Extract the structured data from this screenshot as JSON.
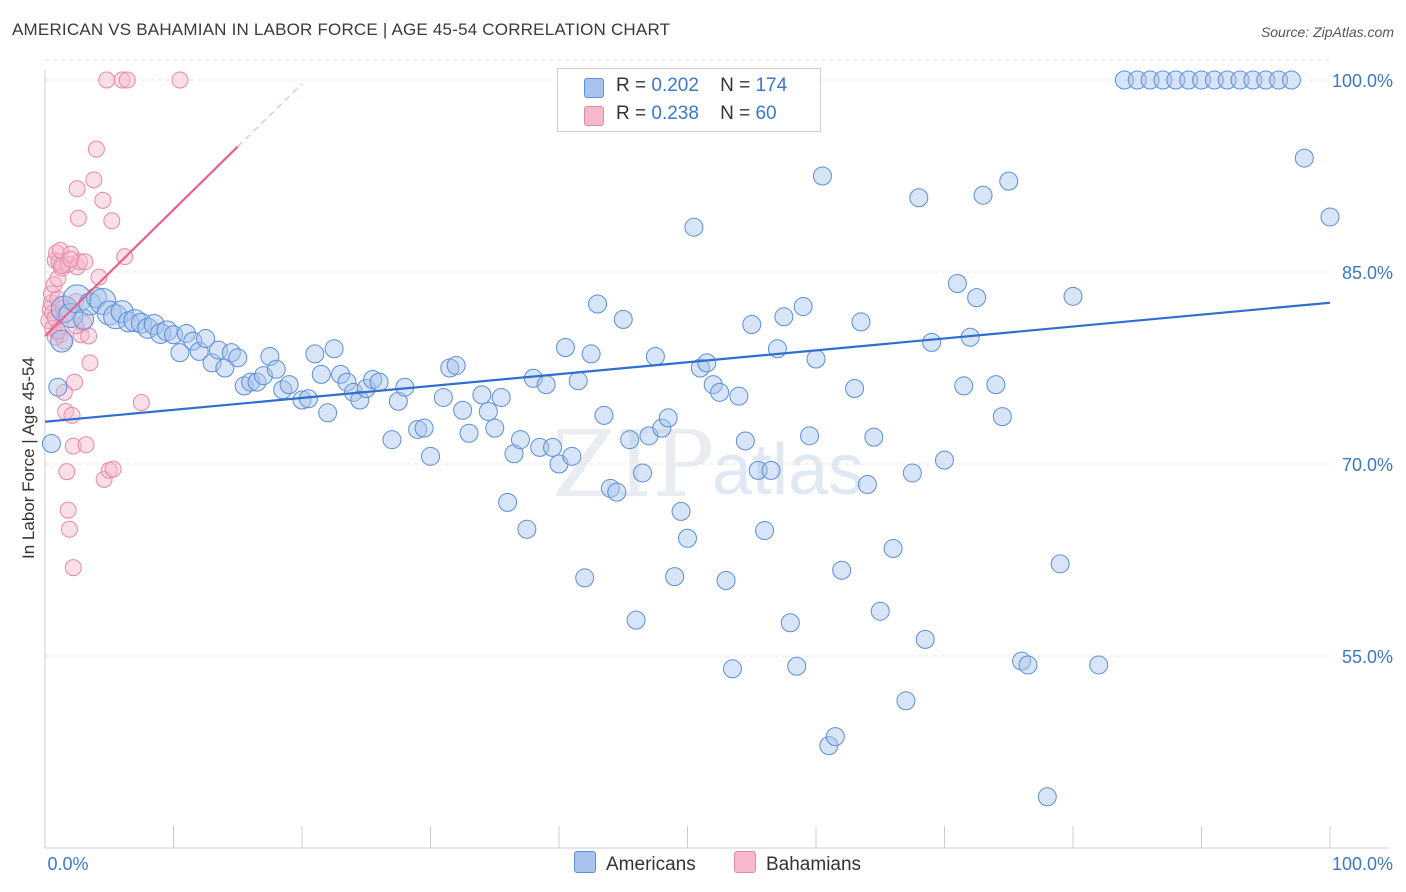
{
  "title": "AMERICAN VS BAHAMIAN IN LABOR FORCE | AGE 45-54 CORRELATION CHART",
  "source": "Source: ZipAtlas.com",
  "watermark": {
    "zip": "ZIP",
    "atlas": "atlas"
  },
  "legend": {
    "rows": [
      {
        "r_label": "R =",
        "r_value": "0.202",
        "n_label": "N =",
        "n_value": "174"
      },
      {
        "r_label": "R =",
        "r_value": "0.238",
        "n_label": "N =",
        "n_value": "60"
      }
    ]
  },
  "bottom_legend": {
    "americans": "Americans",
    "bahamians": "Bahamians"
  },
  "colors": {
    "blue_fill": "#a8c4ee",
    "blue_stroke": "#5b8fd6",
    "blue_line": "#2f6fcf",
    "pink_fill": "#f6b8cb",
    "pink_stroke": "#e58aa6",
    "pink_line": "#e8618c",
    "tick_label": "#3a78c9",
    "grid": "#e2e2e2"
  },
  "chart_data": {
    "type": "scatter",
    "title": "AMERICAN VS BAHAMIAN IN LABOR FORCE | AGE 45-54 CORRELATION CHART",
    "xlabel": "",
    "ylabel": "In Labor Force | Age 45-54",
    "xlim": [
      0,
      100
    ],
    "ylim": [
      40,
      102
    ],
    "x_tick_labels": [
      "0.0%",
      "100.0%"
    ],
    "y_ticks": [
      55,
      70,
      85,
      100
    ],
    "y_tick_labels": [
      "55.0%",
      "70.0%",
      "85.0%",
      "100.0%"
    ],
    "grid": true,
    "legend_position": "top-center",
    "series": [
      {
        "name": "Americans",
        "r": 0.202,
        "n": 174,
        "trend": {
          "x": [
            0,
            100
          ],
          "y": [
            73.3,
            82.6
          ]
        },
        "points": [
          [
            0.5,
            71.6,
            9
          ],
          [
            1.0,
            76.0,
            9
          ],
          [
            1.3,
            79.6,
            11
          ],
          [
            1.5,
            82.1,
            13
          ],
          [
            2.0,
            81.6,
            12
          ],
          [
            2.5,
            82.9,
            14
          ],
          [
            3.0,
            81.3,
            10
          ],
          [
            3.5,
            82.5,
            11
          ],
          [
            4.0,
            83.0,
            10
          ],
          [
            4.5,
            82.7,
            13
          ],
          [
            5.0,
            81.8,
            12
          ],
          [
            5.5,
            81.5,
            12
          ],
          [
            6.0,
            81.9,
            11
          ],
          [
            6.5,
            81.1,
            10
          ],
          [
            7.0,
            81.2,
            11
          ],
          [
            7.5,
            81.0,
            10
          ],
          [
            8.0,
            80.6,
            10
          ],
          [
            8.5,
            80.9,
            10
          ],
          [
            9.0,
            80.2,
            10
          ],
          [
            9.5,
            80.4,
            10
          ],
          [
            10.0,
            80.1,
            9
          ],
          [
            10.5,
            78.7,
            9
          ],
          [
            11.0,
            80.2,
            9
          ],
          [
            11.5,
            79.6,
            9
          ],
          [
            12.0,
            78.8,
            9
          ],
          [
            12.5,
            79.8,
            9
          ],
          [
            13.0,
            77.9,
            9
          ],
          [
            13.5,
            78.9,
            9
          ],
          [
            14.0,
            77.5,
            9
          ],
          [
            14.5,
            78.7,
            9
          ],
          [
            15.0,
            78.3,
            9
          ],
          [
            15.5,
            76.1,
            9
          ],
          [
            16.0,
            76.4,
            9
          ],
          [
            16.5,
            76.4,
            9
          ],
          [
            17.0,
            76.9,
            9
          ],
          [
            17.5,
            78.4,
            9
          ],
          [
            18.0,
            77.4,
            9
          ],
          [
            18.5,
            75.8,
            9
          ],
          [
            19.0,
            76.2,
            9
          ],
          [
            20.0,
            75.0,
            9
          ],
          [
            20.5,
            75.1,
            9
          ],
          [
            21.0,
            78.6,
            9
          ],
          [
            21.5,
            77.0,
            9
          ],
          [
            22.0,
            74.0,
            9
          ],
          [
            22.5,
            79.0,
            9
          ],
          [
            23.0,
            77.0,
            9
          ],
          [
            23.5,
            76.4,
            9
          ],
          [
            24.0,
            75.6,
            9
          ],
          [
            24.5,
            75.0,
            9
          ],
          [
            25.0,
            75.9,
            9
          ],
          [
            25.5,
            76.6,
            9
          ],
          [
            26.0,
            76.4,
            9
          ],
          [
            27.0,
            71.9,
            9
          ],
          [
            27.5,
            74.9,
            9
          ],
          [
            28.0,
            76.0,
            9
          ],
          [
            29.0,
            72.7,
            9
          ],
          [
            29.5,
            72.8,
            9
          ],
          [
            30.0,
            70.6,
            9
          ],
          [
            31.0,
            75.2,
            9
          ],
          [
            31.5,
            77.5,
            9
          ],
          [
            32.0,
            77.7,
            9
          ],
          [
            32.5,
            74.2,
            9
          ],
          [
            33.0,
            72.4,
            9
          ],
          [
            34.0,
            75.4,
            9
          ],
          [
            34.5,
            74.1,
            9
          ],
          [
            35.0,
            72.8,
            9
          ],
          [
            35.5,
            75.2,
            9
          ],
          [
            36.0,
            67.0,
            9
          ],
          [
            36.5,
            70.8,
            9
          ],
          [
            37.0,
            71.9,
            9
          ],
          [
            37.5,
            64.9,
            9
          ],
          [
            38.0,
            76.7,
            9
          ],
          [
            38.5,
            71.3,
            9
          ],
          [
            39.0,
            76.2,
            9
          ],
          [
            39.5,
            71.3,
            9
          ],
          [
            40.0,
            70.0,
            9
          ],
          [
            40.5,
            79.1,
            9
          ],
          [
            41.0,
            70.6,
            9
          ],
          [
            41.5,
            76.5,
            9
          ],
          [
            42.0,
            61.1,
            9
          ],
          [
            42.5,
            78.6,
            9
          ],
          [
            43.0,
            82.5,
            9
          ],
          [
            43.5,
            73.8,
            9
          ],
          [
            44.0,
            68.1,
            9
          ],
          [
            44.5,
            67.8,
            9
          ],
          [
            45.0,
            81.3,
            9
          ],
          [
            45.5,
            71.9,
            9
          ],
          [
            46.0,
            57.8,
            9
          ],
          [
            46.5,
            69.3,
            9
          ],
          [
            47.0,
            72.2,
            9
          ],
          [
            47.5,
            78.4,
            9
          ],
          [
            48.0,
            72.8,
            9
          ],
          [
            48.5,
            73.6,
            9
          ],
          [
            49.0,
            61.2,
            9
          ],
          [
            49.5,
            66.3,
            9
          ],
          [
            50.0,
            64.2,
            9
          ],
          [
            50.5,
            88.5,
            9
          ],
          [
            51.0,
            77.5,
            9
          ],
          [
            51.5,
            77.9,
            9
          ],
          [
            52.0,
            76.2,
            9
          ],
          [
            52.5,
            75.6,
            9
          ],
          [
            53.0,
            60.9,
            9
          ],
          [
            53.5,
            54.0,
            9
          ],
          [
            54.0,
            75.3,
            9
          ],
          [
            54.5,
            71.8,
            9
          ],
          [
            55.0,
            80.9,
            9
          ],
          [
            55.5,
            69.5,
            9
          ],
          [
            56.0,
            64.8,
            9
          ],
          [
            56.5,
            69.5,
            9
          ],
          [
            57.0,
            79.0,
            9
          ],
          [
            57.5,
            81.5,
            9
          ],
          [
            58.0,
            57.6,
            9
          ],
          [
            58.5,
            54.2,
            9
          ],
          [
            59.0,
            82.3,
            9
          ],
          [
            59.5,
            72.2,
            9
          ],
          [
            60.0,
            78.2,
            9
          ],
          [
            60.5,
            92.5,
            9
          ],
          [
            61.0,
            48.0,
            9
          ],
          [
            61.5,
            48.7,
            9
          ],
          [
            62.0,
            61.7,
            9
          ],
          [
            63.0,
            75.9,
            9
          ],
          [
            63.5,
            81.1,
            9
          ],
          [
            64.0,
            68.4,
            9
          ],
          [
            64.5,
            72.1,
            9
          ],
          [
            65.0,
            58.5,
            9
          ],
          [
            66.0,
            63.4,
            9
          ],
          [
            67.0,
            51.5,
            9
          ],
          [
            67.5,
            69.3,
            9
          ],
          [
            68.0,
            90.8,
            9
          ],
          [
            68.5,
            56.3,
            9
          ],
          [
            69.0,
            79.5,
            9
          ],
          [
            70.0,
            70.3,
            9
          ],
          [
            71.0,
            84.1,
            9
          ],
          [
            71.5,
            76.1,
            9
          ],
          [
            72.0,
            79.9,
            9
          ],
          [
            72.5,
            83.0,
            9
          ],
          [
            73.0,
            91.0,
            9
          ],
          [
            74.0,
            76.2,
            9
          ],
          [
            74.5,
            73.7,
            9
          ],
          [
            75.0,
            92.1,
            9
          ],
          [
            76.0,
            54.6,
            9
          ],
          [
            76.5,
            54.3,
            9
          ],
          [
            78.0,
            44.0,
            9
          ],
          [
            79.0,
            62.2,
            9
          ],
          [
            80.0,
            83.1,
            9
          ],
          [
            82.0,
            54.3,
            9
          ],
          [
            84.0,
            100.0,
            9
          ],
          [
            85.0,
            100.0,
            9
          ],
          [
            86.0,
            100.0,
            9
          ],
          [
            87.0,
            100.0,
            9
          ],
          [
            88.0,
            100.0,
            9
          ],
          [
            89.0,
            100.0,
            9
          ],
          [
            90.0,
            100.0,
            9
          ],
          [
            91.0,
            100.0,
            9
          ],
          [
            92.0,
            100.0,
            9
          ],
          [
            93.0,
            100.0,
            9
          ],
          [
            94.0,
            100.0,
            9
          ],
          [
            95.0,
            100.0,
            9
          ],
          [
            96.0,
            100.0,
            9
          ],
          [
            97.0,
            100.0,
            9
          ],
          [
            98.0,
            93.9,
            9
          ],
          [
            100.0,
            89.3,
            9
          ]
        ]
      },
      {
        "name": "Bahamians",
        "r": 0.238,
        "n": 60,
        "trend": {
          "x": [
            0,
            15
          ],
          "y": [
            80.0,
            94.8
          ]
        },
        "trend_dashed": {
          "x": [
            15,
            20
          ],
          "y": [
            94.8,
            99.7
          ]
        },
        "points": [
          [
            0.3,
            81.2
          ],
          [
            0.4,
            82.1
          ],
          [
            0.5,
            82.6
          ],
          [
            0.5,
            83.3
          ],
          [
            0.6,
            81.8
          ],
          [
            0.6,
            80.6
          ],
          [
            0.7,
            84.0
          ],
          [
            0.8,
            85.9
          ],
          [
            0.8,
            81.4
          ],
          [
            0.9,
            86.5
          ],
          [
            1.0,
            84.5
          ],
          [
            1.0,
            82.9
          ],
          [
            1.1,
            85.8
          ],
          [
            1.2,
            86.7
          ],
          [
            1.2,
            80.1
          ],
          [
            1.3,
            85.3
          ],
          [
            1.4,
            82.2
          ],
          [
            1.5,
            79.6
          ],
          [
            1.5,
            81.6
          ],
          [
            1.5,
            75.6
          ],
          [
            1.6,
            74.1
          ],
          [
            1.7,
            69.4
          ],
          [
            1.8,
            66.4
          ],
          [
            1.8,
            85.6
          ],
          [
            1.9,
            64.9
          ],
          [
            2.0,
            86.4
          ],
          [
            2.1,
            73.8
          ],
          [
            2.2,
            61.9
          ],
          [
            2.2,
            71.4
          ],
          [
            2.3,
            76.4
          ],
          [
            2.4,
            82.7
          ],
          [
            2.5,
            85.4
          ],
          [
            2.5,
            91.5
          ],
          [
            2.6,
            89.2
          ],
          [
            2.7,
            85.8
          ],
          [
            2.8,
            80.1
          ],
          [
            3.0,
            81.0
          ],
          [
            3.2,
            71.5
          ],
          [
            3.4,
            80.0
          ],
          [
            3.5,
            77.9
          ],
          [
            3.8,
            92.2
          ],
          [
            4.0,
            94.6
          ],
          [
            4.2,
            84.6
          ],
          [
            4.5,
            90.6
          ],
          [
            4.6,
            68.8
          ],
          [
            4.8,
            100.0
          ],
          [
            5.0,
            69.5
          ],
          [
            5.2,
            89.0
          ],
          [
            5.3,
            69.6
          ],
          [
            6.0,
            100.0
          ],
          [
            6.2,
            86.2
          ],
          [
            6.4,
            100.0
          ],
          [
            7.5,
            74.8
          ],
          [
            10.5,
            100.0
          ],
          [
            0.8,
            79.9
          ],
          [
            1.0,
            80.4
          ],
          [
            1.3,
            85.5
          ],
          [
            2.0,
            86.0
          ],
          [
            2.4,
            80.8
          ],
          [
            3.1,
            85.8
          ]
        ]
      }
    ]
  }
}
